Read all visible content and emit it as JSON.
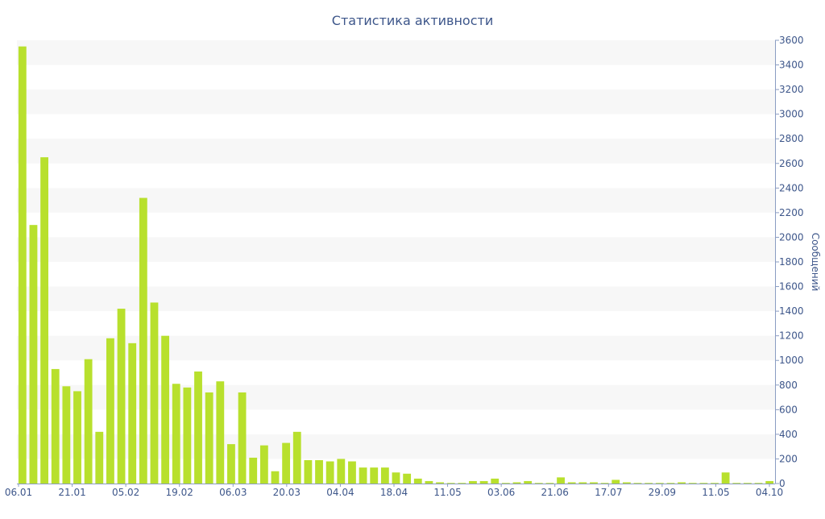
{
  "chart_data": {
    "type": "bar",
    "title": "Статистика активности",
    "ylabel": "Сообщений",
    "xlabel": "",
    "ylim": [
      0,
      3600
    ],
    "ytick_step": 200,
    "y_axis_side": "right",
    "x_tick_labels": [
      "06.01",
      "21.01",
      "05.02",
      "19.02",
      "06.03",
      "20.03",
      "04.04",
      "18.04",
      "11.05",
      "03.06",
      "21.06",
      "17.07",
      "29.09",
      "11.05",
      "04.10"
    ],
    "values": [
      3550,
      2100,
      2650,
      930,
      790,
      750,
      1010,
      420,
      1180,
      1420,
      1140,
      2320,
      1470,
      1200,
      810,
      780,
      910,
      740,
      830,
      320,
      740,
      210,
      310,
      100,
      330,
      420,
      190,
      190,
      180,
      200,
      180,
      130,
      130,
      130,
      90,
      80,
      40,
      20,
      10,
      5,
      5,
      20,
      20,
      40,
      5,
      10,
      20,
      5,
      5,
      50,
      10,
      10,
      10,
      5,
      30,
      10,
      5,
      5,
      5,
      5,
      10,
      5,
      5,
      5,
      90,
      5,
      5,
      5,
      20
    ],
    "grid": true,
    "grid_style": "alternating bands",
    "legend": "none",
    "colors": {
      "bar": "#b8e02d",
      "text": "#3d568a",
      "band": "#f7f7f7",
      "axis": "#8a9cc2"
    }
  }
}
